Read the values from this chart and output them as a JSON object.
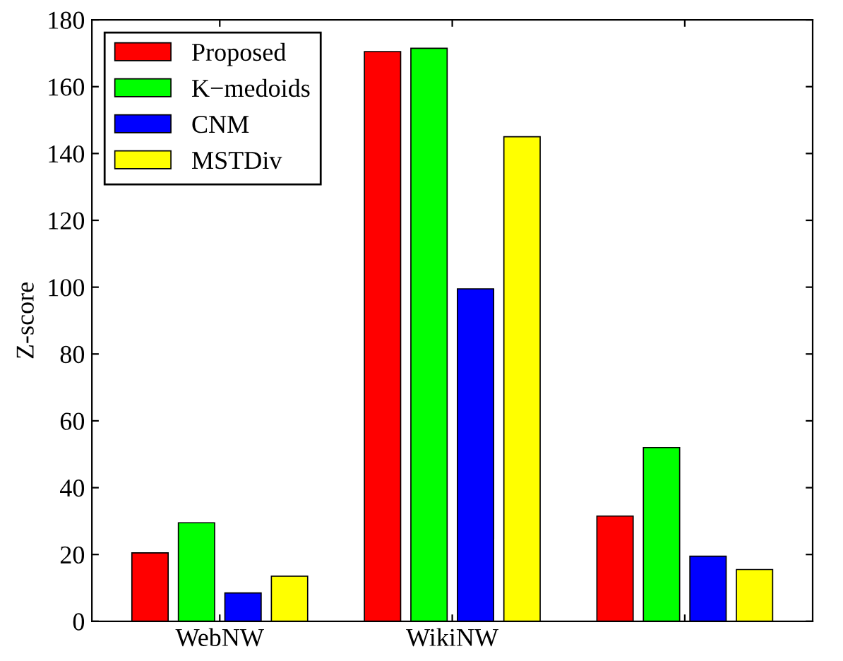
{
  "chart_data": {
    "type": "bar",
    "ylabel": "Z-score",
    "categories": [
      "WebNW",
      "WikiNW",
      null
    ],
    "series": [
      {
        "name": "Proposed",
        "color": "#ff0000",
        "values": [
          20.5,
          170.5,
          31.5
        ]
      },
      {
        "name": "K−medoids",
        "color": "#00ff00",
        "values": [
          29.5,
          171.5,
          52
        ]
      },
      {
        "name": "CNM",
        "color": "#0000ff",
        "values": [
          8.5,
          99.5,
          19.5
        ]
      },
      {
        "name": "MSTDiv",
        "color": "#ffff00",
        "values": [
          13.5,
          145,
          15.5
        ]
      }
    ],
    "ylim": [
      0,
      180
    ],
    "yticks": [
      0,
      20,
      40,
      60,
      80,
      100,
      120,
      140,
      160,
      180
    ],
    "grid": false,
    "legend": "top left"
  }
}
